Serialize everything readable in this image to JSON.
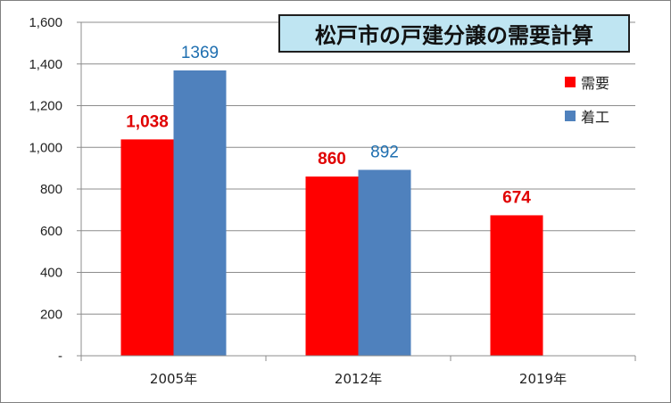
{
  "chart_data": {
    "type": "bar",
    "title": "松戸市の戸建分譲の需要計算",
    "categories": [
      "2005年",
      "2012年",
      "2019年"
    ],
    "series": [
      {
        "name": "需要",
        "values": [
          1038,
          860,
          674
        ],
        "labels": [
          "1,038",
          "860",
          "674"
        ],
        "color": "#ff0000",
        "label_color": "#e00000",
        "label_bold": true
      },
      {
        "name": "着工",
        "values": [
          1369,
          892,
          null
        ],
        "labels": [
          "1369",
          "892",
          ""
        ],
        "color": "#4f81bd",
        "label_color": "#1f6fb0",
        "label_bold": false
      }
    ],
    "y_ticks": [
      0,
      200,
      400,
      600,
      800,
      1000,
      1200,
      1400,
      1600
    ],
    "y_tick_labels": [
      "-",
      "200",
      "400",
      "600",
      "800",
      "1,000",
      "1,200",
      "1,400",
      "1,600"
    ],
    "ylim": [
      0,
      1600
    ],
    "xlabel": "",
    "ylabel": "",
    "grid": true,
    "legend_position": "top-right"
  }
}
